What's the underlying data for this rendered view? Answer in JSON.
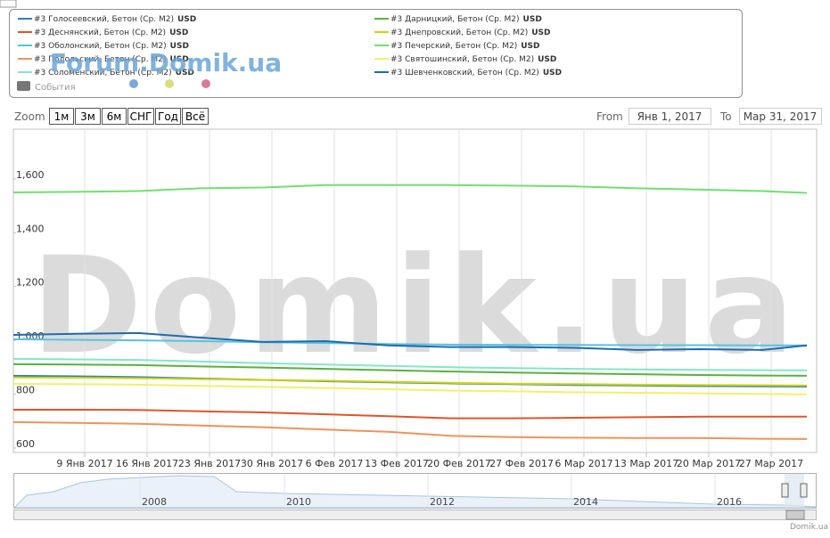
{
  "chart_data": {
    "type": "line",
    "legend_unit": "USD",
    "events_label": "События",
    "watermarks": [
      "Domik.ua",
      "Forum.Domik.ua"
    ],
    "zoom": {
      "label": "Zoom",
      "buttons": [
        "1м",
        "3м",
        "6м",
        "СНГ",
        "Год",
        "Всё"
      ]
    },
    "range": {
      "from_label": "From",
      "from": "Янв 1, 2017",
      "to_label": "To",
      "to": "Мар 31, 2017"
    },
    "navigator_years": [
      "2008",
      "2010",
      "2012",
      "2014",
      "2016"
    ],
    "credits": "Domik.ua",
    "xlim": [
      "2017-01-01",
      "2017-04-01"
    ],
    "xticks": [
      {
        "value": "2017-01-09",
        "label": "9 Янв 2017"
      },
      {
        "value": "2017-01-16",
        "label": "16 Янв 2017"
      },
      {
        "value": "2017-01-23",
        "label": "23 Янв 2017"
      },
      {
        "value": "2017-01-30",
        "label": "30 Янв 2017"
      },
      {
        "value": "2017-02-06",
        "label": "6 Фев 2017"
      },
      {
        "value": "2017-02-13",
        "label": "13 Фев 2017"
      },
      {
        "value": "2017-02-20",
        "label": "20 Фев 2017"
      },
      {
        "value": "2017-02-27",
        "label": "27 Фев 2017"
      },
      {
        "value": "2017-03-06",
        "label": "6 Мар 2017"
      },
      {
        "value": "2017-03-13",
        "label": "13 Мар 2017"
      },
      {
        "value": "2017-03-20",
        "label": "20 Мар 2017"
      },
      {
        "value": "2017-03-27",
        "label": "27 Мар 2017"
      }
    ],
    "ylim": [
      583,
      1785
    ],
    "yticks": [
      600,
      800,
      {
        "value": 1000,
        "label": "1,000"
      },
      {
        "value": 1200,
        "label": "1,200"
      },
      {
        "value": 1400,
        "label": "1,400"
      },
      {
        "value": 1600,
        "label": "1,600"
      }
    ],
    "xgrid": true,
    "x": [
      "2017-01-01",
      "2017-01-08",
      "2017-01-15",
      "2017-01-22",
      "2017-01-29",
      "2017-02-05",
      "2017-02-12",
      "2017-02-19",
      "2017-02-26",
      "2017-03-05",
      "2017-03-12",
      "2017-03-19",
      "2017-03-26",
      "2017-03-31"
    ],
    "series": [
      {
        "name": "#3 Голосеевский, Бетон (Ср. М2)",
        "color": "#2f7ebc",
        "values": [
          868,
          866,
          863,
          858,
          853,
          848,
          844,
          840,
          837,
          834,
          832,
          830,
          829,
          828
        ]
      },
      {
        "name": "#3 Деснянский, Бетон (Ср. М2)",
        "color": "#e0542a",
        "values": [
          742,
          742,
          741,
          736,
          732,
          725,
          718,
          710,
          710,
          712,
          714,
          716,
          716,
          716
        ]
      },
      {
        "name": "#3 Оболонский, Бетон (Ср. М2)",
        "color": "#55c3df",
        "values": [
          1004,
          1002,
          1000,
          997,
          993,
          990,
          986,
          984,
          983,
          983,
          982,
          982,
          981,
          981
        ]
      },
      {
        "name": "#3 Подольский, Бетон (Ср. М2)",
        "color": "#f0925a",
        "values": [
          696,
          693,
          690,
          683,
          677,
          668,
          660,
          645,
          640,
          638,
          637,
          637,
          634,
          633
        ]
      },
      {
        "name": "#3 Соломенский, Бетон (Ср. М2)",
        "color": "#80e8c8",
        "values": [
          931,
          929,
          927,
          921,
          915,
          910,
          905,
          900,
          897,
          894,
          892,
          890,
          889,
          888
        ]
      },
      {
        "name": "#3 Дарницкий, Бетон (Ср. М2)",
        "color": "#5ab03c",
        "values": [
          911,
          910,
          908,
          903,
          899,
          894,
          889,
          884,
          880,
          877,
          874,
          871,
          869,
          868
        ]
      },
      {
        "name": "#3 Днепровский, Бетон (Ср. М2)",
        "color": "#cfd600",
        "values": [
          862,
          861,
          859,
          856,
          853,
          850,
          846,
          842,
          839,
          837,
          835,
          834,
          833,
          832
        ]
      },
      {
        "name": "#3 Печерский, Бетон (Ср. М2)",
        "color": "#70e070",
        "values": [
          1550,
          1552,
          1555,
          1565,
          1568,
          1577,
          1577,
          1577,
          1575,
          1572,
          1565,
          1560,
          1555,
          1548
        ]
      },
      {
        "name": "#3 Святошинский, Бетон (Ср. М2)",
        "color": "#f2f06a",
        "values": [
          838,
          837,
          835,
          831,
          827,
          823,
          818,
          813,
          810,
          807,
          805,
          803,
          801,
          799
        ]
      },
      {
        "name": "#3 Шевченковский, Бетон (Ср. М2)",
        "color": "#1f6bb0",
        "values": [
          1020,
          1024,
          1027,
          1010,
          994,
          997,
          981,
          975,
          975,
          972,
          964,
          967,
          964,
          981
        ]
      }
    ]
  }
}
